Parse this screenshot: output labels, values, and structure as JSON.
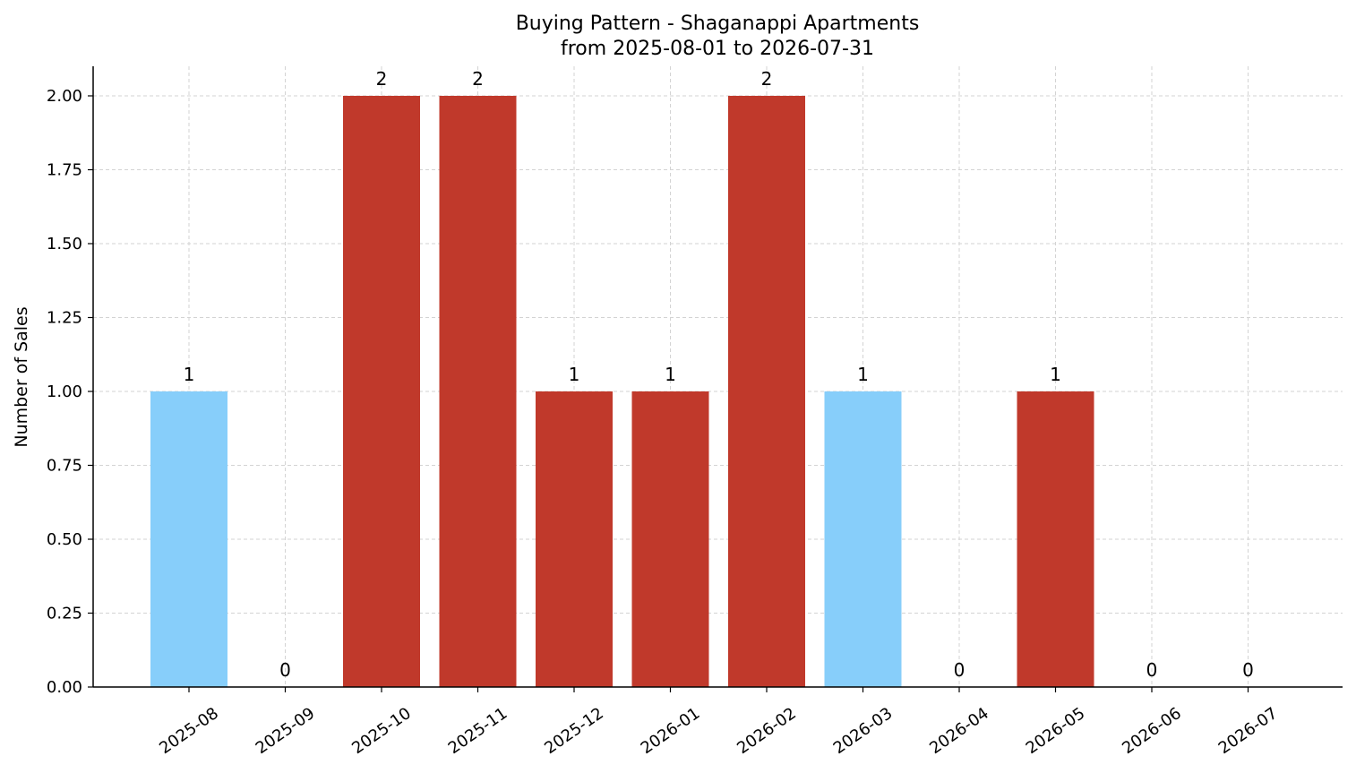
{
  "chart_data": {
    "type": "bar",
    "title_line1": "Buying Pattern - Shaganappi Apartments",
    "title_line2": "from 2025-08-01 to 2026-07-31",
    "xlabel": "",
    "ylabel": "Number of Sales",
    "categories": [
      "2025-08",
      "2025-09",
      "2025-10",
      "2025-11",
      "2025-12",
      "2026-01",
      "2026-02",
      "2026-03",
      "2026-04",
      "2026-05",
      "2026-06",
      "2026-07"
    ],
    "values": [
      1,
      0,
      2,
      2,
      1,
      1,
      2,
      1,
      0,
      1,
      0,
      0
    ],
    "bar_colors": [
      "#87CEFA",
      "#C0392B",
      "#C0392B",
      "#C0392B",
      "#C0392B",
      "#C0392B",
      "#C0392B",
      "#87CEFA",
      "#C0392B",
      "#C0392B",
      "#C0392B",
      "#C0392B"
    ],
    "ylim": [
      0,
      2.1
    ],
    "yticks": [
      "0.00",
      "0.25",
      "0.50",
      "0.75",
      "1.00",
      "1.25",
      "1.50",
      "1.75",
      "2.00"
    ],
    "grid": true,
    "legend": "none"
  }
}
